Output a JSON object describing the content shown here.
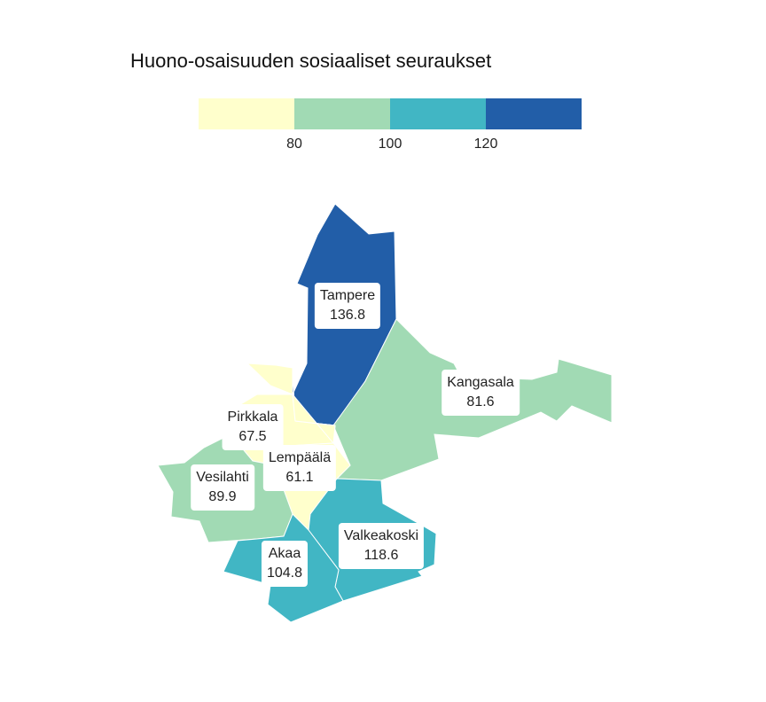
{
  "title": "Huono-osaisuuden sosiaaliset seuraukset",
  "legend": {
    "colors": [
      "#ffffcc",
      "#a1dab4",
      "#41b6c4",
      "#225ea8"
    ],
    "ticks": [
      "80",
      "100",
      "120"
    ]
  },
  "regions": [
    {
      "name": "Tampere",
      "value": "136.8",
      "color": "#225ea8"
    },
    {
      "name": "Kangasala",
      "value": "81.6",
      "color": "#a1dab4"
    },
    {
      "name": "Pirkkala",
      "value": "67.5",
      "color": "#ffffcc"
    },
    {
      "name": "Lempäälä",
      "value": "61.1",
      "color": "#ffffcc"
    },
    {
      "name": "Vesilahti",
      "value": "89.9",
      "color": "#a1dab4"
    },
    {
      "name": "Valkeakoski",
      "value": "118.6",
      "color": "#41b6c4"
    },
    {
      "name": "Akaa",
      "value": "104.8",
      "color": "#41b6c4"
    }
  ]
}
